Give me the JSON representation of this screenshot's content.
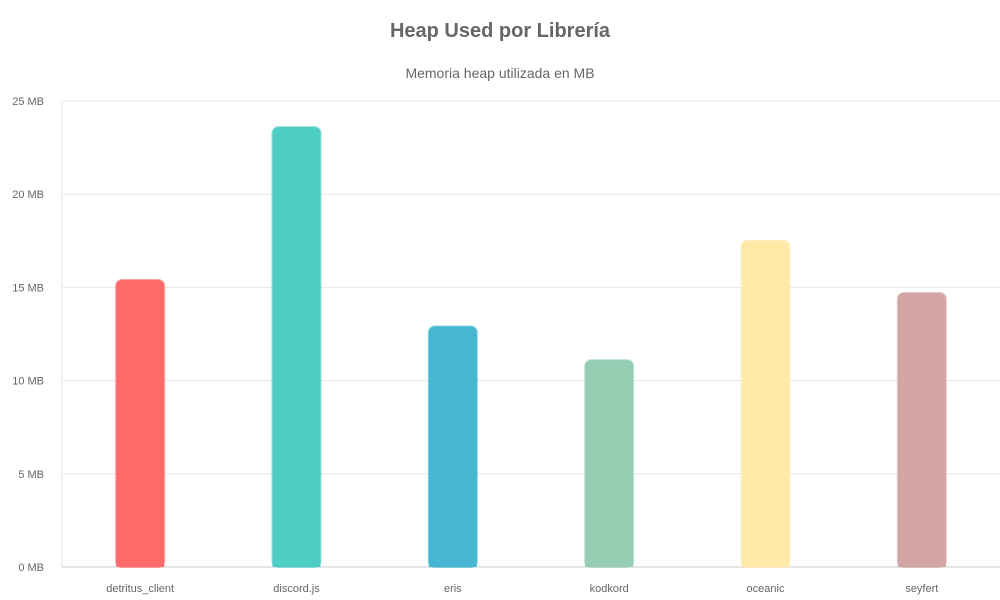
{
  "chart_data": {
    "type": "bar",
    "title": "Heap Used por Librería",
    "subtitle": "Memoria heap utilizada en MB",
    "categories": [
      "detritus_client",
      "discord.js",
      "eris",
      "kodkord",
      "oceanic",
      "seyfert"
    ],
    "values": [
      15.4,
      23.6,
      12.9,
      11.1,
      17.5,
      14.7
    ],
    "colors": [
      "#ff6b6b",
      "#4ecdc4",
      "#45b7d1",
      "#96ceb4",
      "#ffeaa7",
      "#d4a5a5"
    ],
    "ylim": [
      0,
      25
    ],
    "yticks": [
      {
        "value": 0,
        "label": "0 MB"
      },
      {
        "value": 5,
        "label": "5 MB"
      },
      {
        "value": 10,
        "label": "10 MB"
      },
      {
        "value": 15,
        "label": "15 MB"
      },
      {
        "value": 20,
        "label": "20 MB"
      },
      {
        "value": 25,
        "label": "25 MB"
      }
    ],
    "grid": true,
    "legend": "none"
  }
}
